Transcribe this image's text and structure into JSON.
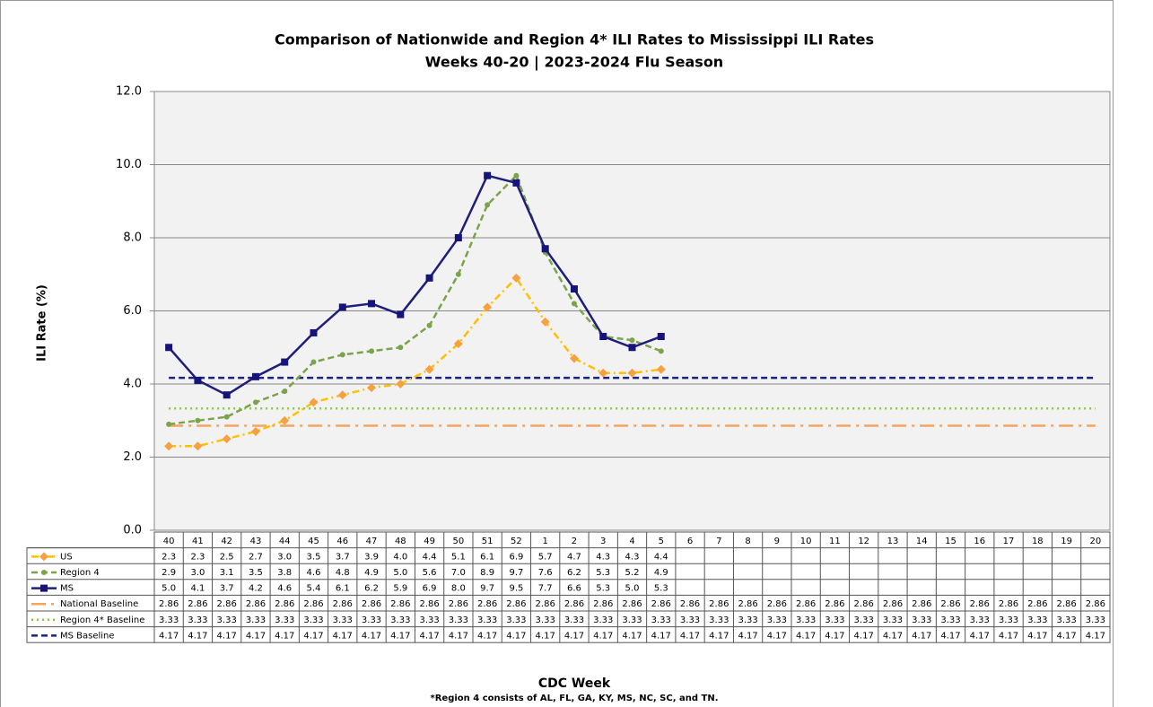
{
  "chart_data": {
    "type": "line",
    "title": "Comparison of Nationwide and Region 4* ILI Rates to Mississippi ILI Rates",
    "subtitle": "Weeks 40-20 | 2023-2024  Flu Season",
    "y_label": "ILI Rate (%)",
    "x_label": "CDC Week",
    "footnote": "*Region 4 consists of AL, FL, GA, KY, MS, NC, SC, and TN.",
    "categories": [
      "40",
      "41",
      "42",
      "43",
      "44",
      "45",
      "46",
      "47",
      "48",
      "49",
      "50",
      "51",
      "52",
      "1",
      "2",
      "3",
      "4",
      "5",
      "6",
      "7",
      "8",
      "9",
      "10",
      "11",
      "12",
      "13",
      "14",
      "15",
      "16",
      "17",
      "18",
      "19",
      "20"
    ],
    "ylim": [
      0,
      12
    ],
    "yticks": [
      {
        "value": 0,
        "label": "0.0"
      },
      {
        "value": 2,
        "label": "2.0"
      },
      {
        "value": 4,
        "label": "4.0"
      },
      {
        "value": 6,
        "label": "6.0"
      },
      {
        "value": 8,
        "label": "8.0"
      },
      {
        "value": 10,
        "label": "10.0"
      },
      {
        "value": 12,
        "label": "12.0"
      }
    ],
    "grid": true,
    "data_table": true,
    "series": [
      {
        "name": "US",
        "color": "#ffc000",
        "marker": "diamond",
        "marker_color": "#f5a142",
        "dash": "dashdot",
        "values": [
          2.3,
          2.3,
          2.5,
          2.7,
          3.0,
          3.5,
          3.7,
          3.9,
          4.0,
          4.4,
          5.1,
          6.1,
          6.9,
          5.7,
          4.7,
          4.3,
          4.3,
          4.4,
          null,
          null,
          null,
          null,
          null,
          null,
          null,
          null,
          null,
          null,
          null,
          null,
          null,
          null,
          null
        ],
        "value_labels": [
          "2.3",
          "2.3",
          "2.5",
          "2.7",
          "3.0",
          "3.5",
          "3.7",
          "3.9",
          "4.0",
          "4.4",
          "5.1",
          "6.1",
          "6.9",
          "5.7",
          "4.7",
          "4.3",
          "4.3",
          "4.4",
          null,
          null,
          null,
          null,
          null,
          null,
          null,
          null,
          null,
          null,
          null,
          null,
          null,
          null,
          null
        ]
      },
      {
        "name": "Region 4",
        "color": "#7aa34a",
        "marker": "circle",
        "marker_color": "#7aa34a",
        "dash": "dash",
        "values": [
          2.9,
          3.0,
          3.1,
          3.5,
          3.8,
          4.6,
          4.8,
          4.9,
          5.0,
          5.6,
          7.0,
          8.9,
          9.7,
          7.6,
          6.2,
          5.3,
          5.2,
          4.9,
          null,
          null,
          null,
          null,
          null,
          null,
          null,
          null,
          null,
          null,
          null,
          null,
          null,
          null,
          null
        ],
        "value_labels": [
          "2.9",
          "3.0",
          "3.1",
          "3.5",
          "3.8",
          "4.6",
          "4.8",
          "4.9",
          "5.0",
          "5.6",
          "7.0",
          "8.9",
          "9.7",
          "7.6",
          "6.2",
          "5.3",
          "5.2",
          "4.9",
          null,
          null,
          null,
          null,
          null,
          null,
          null,
          null,
          null,
          null,
          null,
          null,
          null,
          null,
          null
        ]
      },
      {
        "name": "MS",
        "color": "#1f1f7a",
        "marker": "square",
        "marker_color": "#14147a",
        "dash": "solid",
        "values": [
          5.0,
          4.1,
          3.7,
          4.2,
          4.6,
          5.4,
          6.1,
          6.2,
          5.9,
          6.9,
          8.0,
          9.7,
          9.5,
          7.7,
          6.6,
          5.3,
          5.0,
          5.3,
          null,
          null,
          null,
          null,
          null,
          null,
          null,
          null,
          null,
          null,
          null,
          null,
          null,
          null,
          null
        ],
        "value_labels": [
          "5.0",
          "4.1",
          "3.7",
          "4.2",
          "4.6",
          "5.4",
          "6.1",
          "6.2",
          "5.9",
          "6.9",
          "8.0",
          "9.7",
          "9.5",
          "7.7",
          "6.6",
          "5.3",
          "5.0",
          "5.3",
          null,
          null,
          null,
          null,
          null,
          null,
          null,
          null,
          null,
          null,
          null,
          null,
          null,
          null,
          null
        ]
      },
      {
        "name": "National Baseline",
        "color": "#f4a460",
        "marker": "none",
        "dash": "longdashdot",
        "values": [
          2.86,
          2.86,
          2.86,
          2.86,
          2.86,
          2.86,
          2.86,
          2.86,
          2.86,
          2.86,
          2.86,
          2.86,
          2.86,
          2.86,
          2.86,
          2.86,
          2.86,
          2.86,
          2.86,
          2.86,
          2.86,
          2.86,
          2.86,
          2.86,
          2.86,
          2.86,
          2.86,
          2.86,
          2.86,
          2.86,
          2.86,
          2.86,
          2.86
        ]
      },
      {
        "name": "Region 4* Baseline",
        "color": "#8cc63f",
        "marker": "none",
        "dash": "dot",
        "values": [
          3.33,
          3.33,
          3.33,
          3.33,
          3.33,
          3.33,
          3.33,
          3.33,
          3.33,
          3.33,
          3.33,
          3.33,
          3.33,
          3.33,
          3.33,
          3.33,
          3.33,
          3.33,
          3.33,
          3.33,
          3.33,
          3.33,
          3.33,
          3.33,
          3.33,
          3.33,
          3.33,
          3.33,
          3.33,
          3.33,
          3.33,
          3.33,
          3.33
        ]
      },
      {
        "name": "MS Baseline",
        "color": "#1a237e",
        "marker": "none",
        "dash": "dash",
        "values": [
          4.17,
          4.17,
          4.17,
          4.17,
          4.17,
          4.17,
          4.17,
          4.17,
          4.17,
          4.17,
          4.17,
          4.17,
          4.17,
          4.17,
          4.17,
          4.17,
          4.17,
          4.17,
          4.17,
          4.17,
          4.17,
          4.17,
          4.17,
          4.17,
          4.17,
          4.17,
          4.17,
          4.17,
          4.17,
          4.17,
          4.17,
          4.17,
          4.17
        ]
      }
    ]
  }
}
